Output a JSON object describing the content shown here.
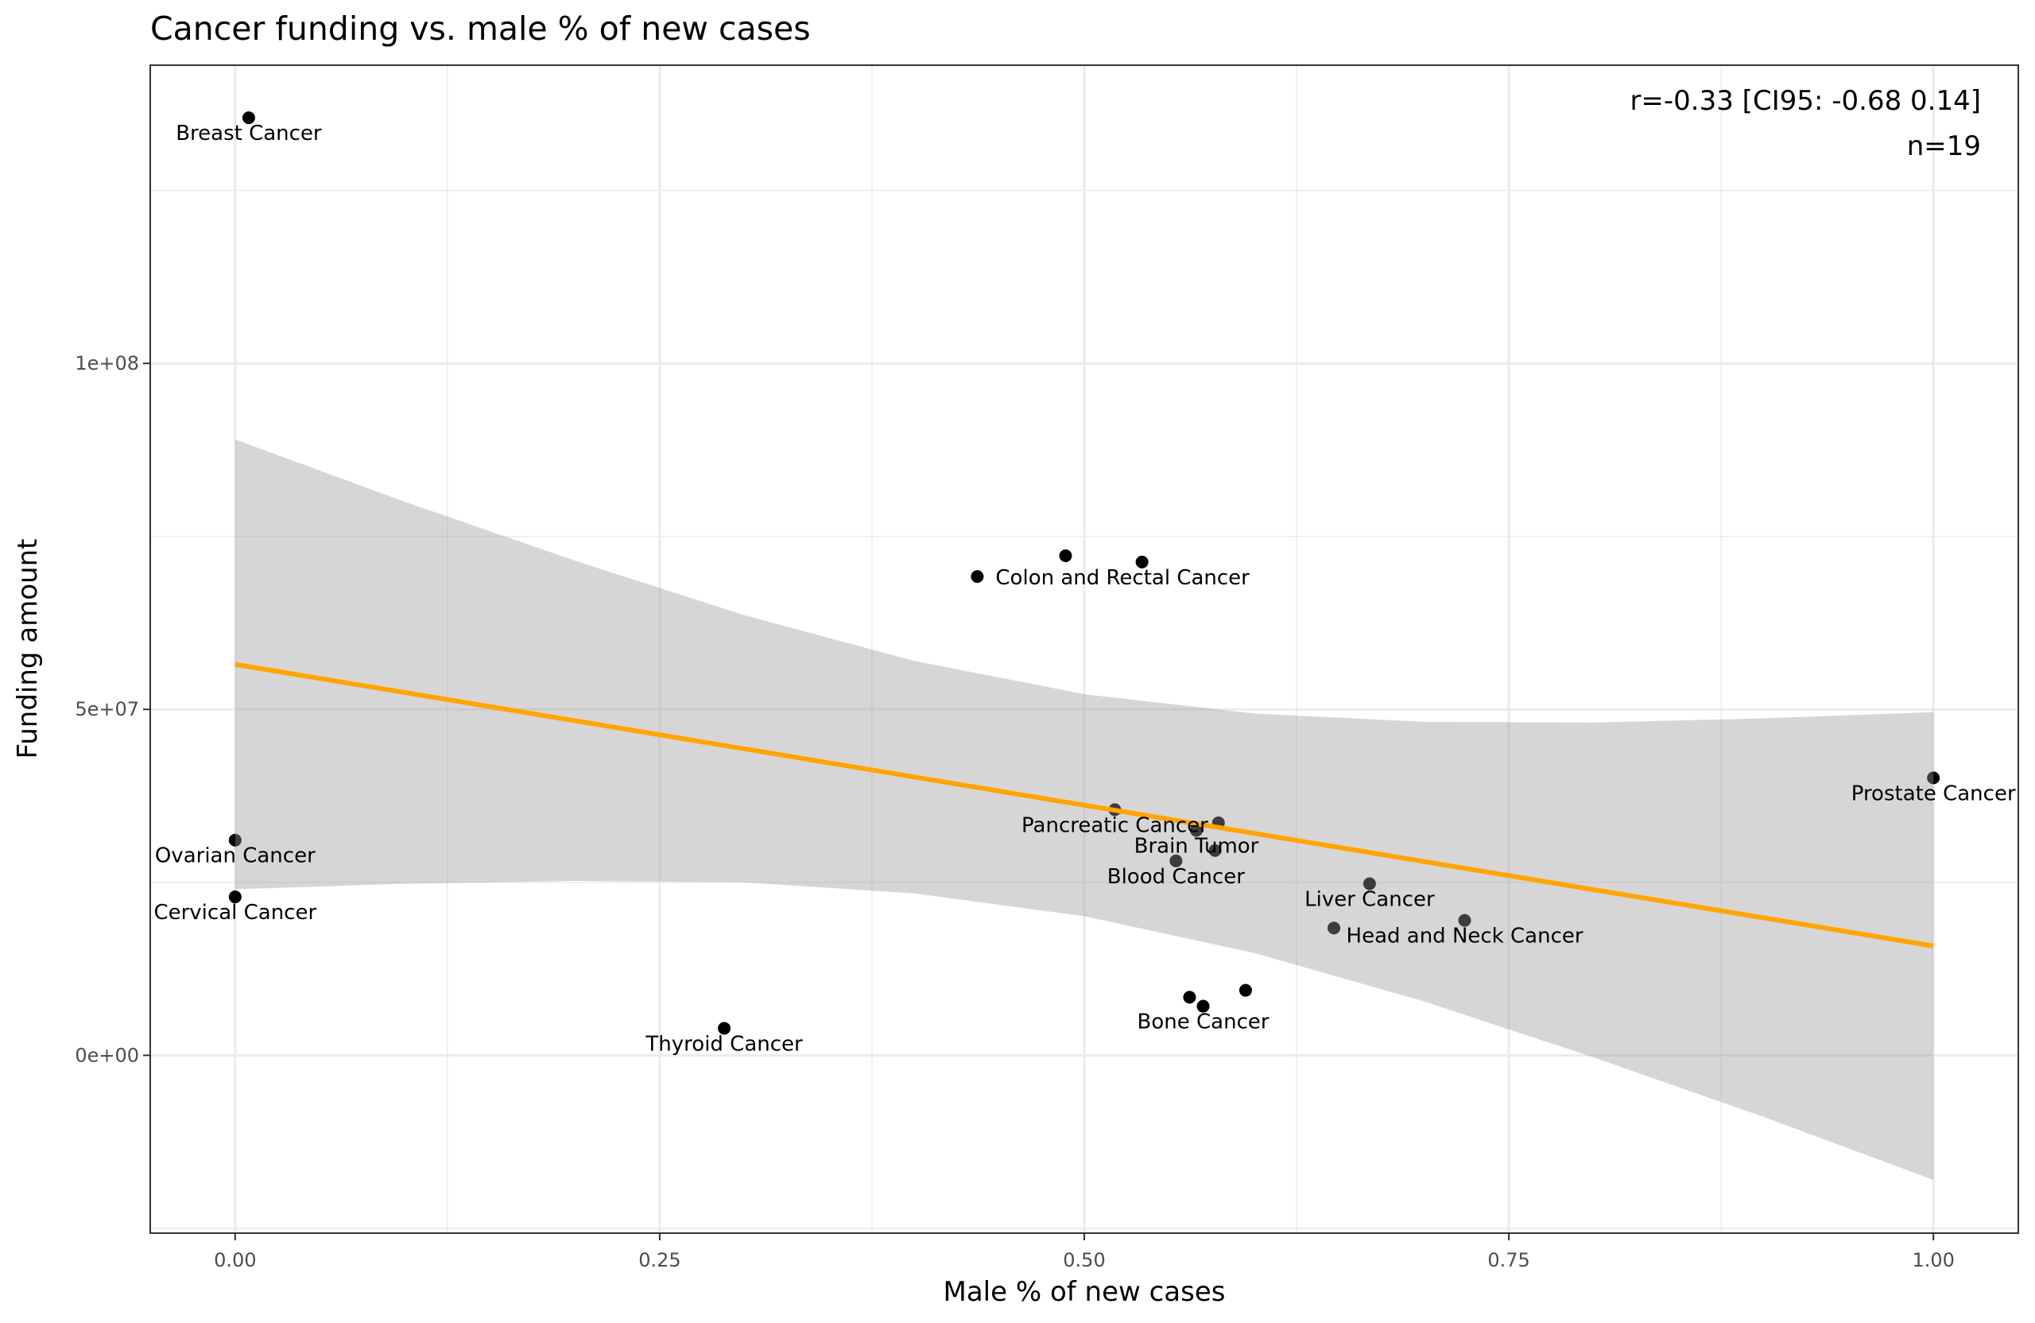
{
  "chart_data": {
    "type": "scatter",
    "title": "Cancer funding vs. male % of new cases",
    "xlabel": "Male % of new cases",
    "ylabel": "Funding amount",
    "xlim": [
      -0.05,
      1.05
    ],
    "ylim": [
      -25700000,
      143100000
    ],
    "x_ticks": [
      {
        "v": 0,
        "label": "0.00"
      },
      {
        "v": 0.25,
        "label": "0.25"
      },
      {
        "v": 0.5,
        "label": "0.50"
      },
      {
        "v": 0.75,
        "label": "0.75"
      },
      {
        "v": 1,
        "label": "1.00"
      }
    ],
    "y_ticks": [
      {
        "v": 0,
        "label": "0e+00"
      },
      {
        "v": 50000000,
        "label": "5e+07"
      },
      {
        "v": 100000000,
        "label": "1e+08"
      }
    ],
    "x_minor": [
      0.125,
      0.375,
      0.625,
      0.875
    ],
    "y_minor": [
      -25000000,
      25000000,
      75000000,
      125000000
    ],
    "grid": true,
    "annotation": [
      "r=-0.33 [CI95: -0.68 0.14]",
      "n=19"
    ],
    "colors": {
      "fit_line": "#FFA500",
      "ci_band": "#999999",
      "points": "#000000",
      "grid": "#ebebeb"
    },
    "points": [
      {
        "x": 0.008,
        "y": 135500000,
        "label": "Breast Cancer"
      },
      {
        "x": 0.437,
        "y": 69200000,
        "label": "Colon and Rectal Cancer",
        "label_side": "right"
      },
      {
        "x": 0.489,
        "y": 72200000
      },
      {
        "x": 0.534,
        "y": 71300000
      },
      {
        "x": 1.0,
        "y": 40100000,
        "label": "Prostate Cancer"
      },
      {
        "x": 0.0,
        "y": 31100000,
        "label": "Ovarian Cancer"
      },
      {
        "x": 0.0,
        "y": 22900000,
        "label": "Cervical Cancer"
      },
      {
        "x": 0.518,
        "y": 35500000,
        "label": "Pancreatic Cancer"
      },
      {
        "x": 0.566,
        "y": 32500000,
        "label": "Brain Tumor"
      },
      {
        "x": 0.579,
        "y": 33600000
      },
      {
        "x": 0.577,
        "y": 29600000
      },
      {
        "x": 0.554,
        "y": 28100000,
        "label": "Blood Cancer"
      },
      {
        "x": 0.668,
        "y": 24800000,
        "label": "Liver Cancer"
      },
      {
        "x": 0.724,
        "y": 19500000,
        "label": "Head and Neck Cancer"
      },
      {
        "x": 0.647,
        "y": 18400000
      },
      {
        "x": 0.562,
        "y": 8400000
      },
      {
        "x": 0.57,
        "y": 7100000,
        "label": "Bone Cancer"
      },
      {
        "x": 0.595,
        "y": 9400000
      },
      {
        "x": 0.288,
        "y": 3900000,
        "label": "Thyroid Cancer"
      }
    ],
    "fit": {
      "x": [
        0,
        1
      ],
      "y": [
        56500000,
        15800000
      ]
    },
    "ci_band": {
      "x": [
        0,
        0.1,
        0.2,
        0.3,
        0.4,
        0.5,
        0.6,
        0.7,
        0.8,
        0.9,
        1.0
      ],
      "upper": [
        89000000,
        80000000,
        71500000,
        63600000,
        57000000,
        52200000,
        49400000,
        48200000,
        48100000,
        48700000,
        49600000
      ],
      "lower": [
        24000000,
        24800000,
        25200000,
        25000000,
        23400000,
        20100000,
        14800000,
        7800000,
        -300000,
        -8900000,
        -18000000
      ]
    }
  }
}
